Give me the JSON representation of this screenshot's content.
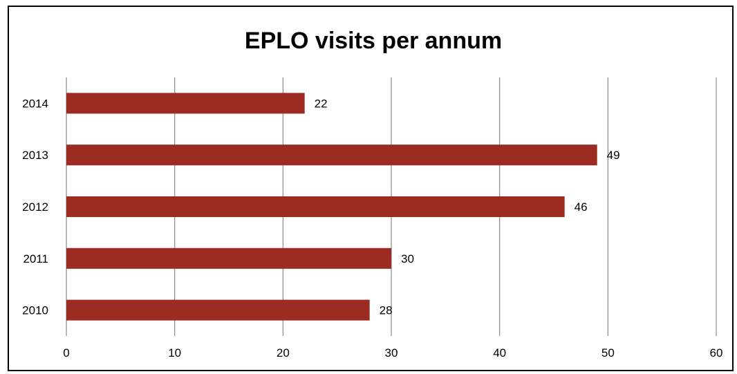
{
  "chart_data": {
    "type": "bar",
    "orientation": "horizontal",
    "title": "EPLO visits per annum",
    "xlabel": "",
    "ylabel": "",
    "categories": [
      "2010",
      "2011",
      "2012",
      "2013",
      "2014"
    ],
    "values": [
      28,
      30,
      46,
      49,
      22
    ],
    "xlim": [
      0,
      60
    ],
    "xticks": [
      0,
      10,
      20,
      30,
      40,
      50,
      60
    ],
    "grid": "vertical",
    "legend": "none",
    "data_labels": true,
    "bar_color": "#9c2b22"
  }
}
